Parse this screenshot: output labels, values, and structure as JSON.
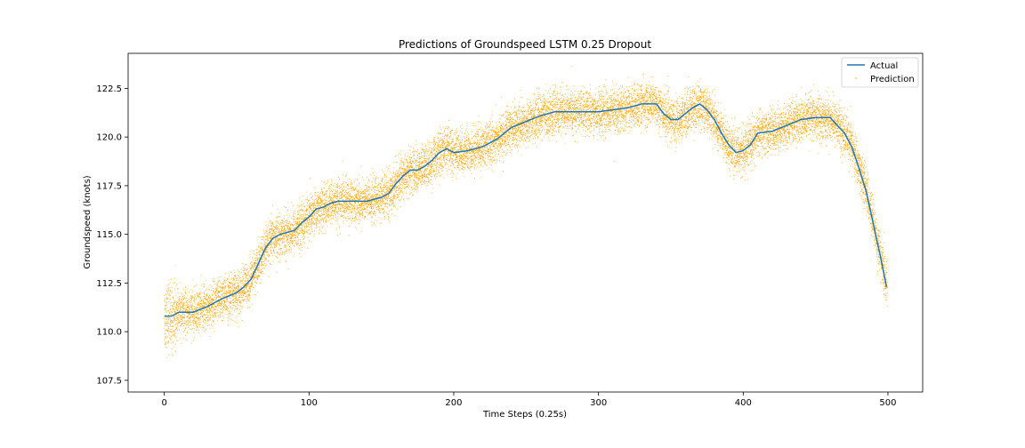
{
  "chart_data": {
    "type": "line",
    "title": "Predictions of Groundspeed LSTM 0.25 Dropout",
    "xlabel": "Time Steps (0.25s)",
    "ylabel": "Groundspeed (knots)",
    "xlim": [
      -25,
      524
    ],
    "ylim": [
      106.9,
      124.3
    ],
    "x_ticks": [
      0,
      100,
      200,
      300,
      400,
      500
    ],
    "x_tick_labels": [
      "0",
      "100",
      "200",
      "300",
      "400",
      "500"
    ],
    "y_ticks": [
      107.5,
      110.0,
      112.5,
      115.0,
      117.5,
      120.0,
      122.5
    ],
    "y_tick_labels": [
      "107.5",
      "110.0",
      "112.5",
      "115.0",
      "117.5",
      "120.0",
      "122.5"
    ],
    "grid": false,
    "legend_position": "top-right",
    "series": [
      {
        "name": "Actual",
        "style": "line",
        "color": "#1f77b4",
        "x": [
          0,
          5,
          10,
          20,
          30,
          40,
          50,
          55,
          60,
          65,
          70,
          75,
          80,
          90,
          95,
          100,
          105,
          110,
          115,
          120,
          130,
          140,
          150,
          155,
          160,
          165,
          170,
          175,
          180,
          185,
          190,
          195,
          200,
          210,
          220,
          230,
          240,
          250,
          260,
          270,
          280,
          290,
          300,
          310,
          320,
          330,
          340,
          345,
          350,
          355,
          360,
          365,
          370,
          375,
          380,
          385,
          390,
          395,
          400,
          405,
          410,
          420,
          430,
          440,
          450,
          460,
          465,
          470,
          475,
          480,
          485,
          490,
          495,
          499
        ],
        "values": [
          110.8,
          110.8,
          111.0,
          111.0,
          111.3,
          111.7,
          112.0,
          112.3,
          112.7,
          113.5,
          114.3,
          114.8,
          115.0,
          115.2,
          115.6,
          115.9,
          116.3,
          116.4,
          116.6,
          116.7,
          116.7,
          116.7,
          116.9,
          117.1,
          117.6,
          118.0,
          118.3,
          118.3,
          118.5,
          118.8,
          119.2,
          119.4,
          119.2,
          119.3,
          119.5,
          119.9,
          120.5,
          120.8,
          121.1,
          121.3,
          121.3,
          121.3,
          121.3,
          121.4,
          121.5,
          121.7,
          121.7,
          121.2,
          120.9,
          120.9,
          121.2,
          121.5,
          121.7,
          121.4,
          120.9,
          120.2,
          119.6,
          119.2,
          119.3,
          119.6,
          120.2,
          120.3,
          120.6,
          120.9,
          121.0,
          121.0,
          120.6,
          120.2,
          119.5,
          118.4,
          117.2,
          115.5,
          113.8,
          112.3
        ]
      },
      {
        "name": "Prediction",
        "style": "scatter",
        "color": "#ffa500",
        "spread": 1.0
      }
    ]
  }
}
